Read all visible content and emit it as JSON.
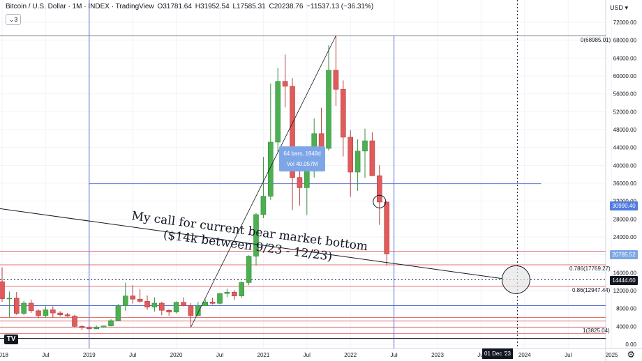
{
  "header": {
    "symbol": "Bitcoin / U.S. Dollar · 1M · INDEX · TradingView",
    "open": "O31781.64",
    "high": "H31952.54",
    "low": "L17585.31",
    "close": "C20238.76",
    "change": "−11537.13 (−36.31%)"
  },
  "indicator_count": "3",
  "currency": "USD",
  "tooltip": {
    "line1": "64 bars, 1948d",
    "line2": "Vol 40.057M"
  },
  "annotation": {
    "line1": "My call for current bear market bottom",
    "line2": "($14k between 9/23 - 12/23)"
  },
  "price_tags": {
    "t1": "30990.40",
    "t2": "20785.52",
    "t3": "14444.60"
  },
  "fib_labels": {
    "f0": "0(68985.01)",
    "f786": "0.786(17769.27)",
    "f86": "0.86(12947.44)",
    "f1": "1(3825.04)"
  },
  "crosshair_date": "01 Dec '23",
  "colors": {
    "up": "#4caf50",
    "down": "#e05c5c",
    "fib": "#e57373",
    "guide": "#5b6fd6",
    "accent_tag": "#4f7de0"
  },
  "chart_data": {
    "type": "candlestick",
    "title": "Bitcoin / U.S. Dollar · 1M · INDEX · TradingView",
    "interval": "1M",
    "ylim": [
      0,
      74000
    ],
    "y_ticks": [
      0,
      4000,
      8000,
      12000,
      16000,
      20000,
      24000,
      28000,
      32000,
      36000,
      40000,
      44000,
      48000,
      52000,
      56000,
      60000,
      64000,
      68000,
      72000
    ],
    "y_tick_labels": [
      "0.00",
      "4000.00",
      "8000.00",
      "12000.00",
      "16000.00",
      "20000.00",
      "24000.00",
      "28000.00",
      "32000.00",
      "36000.00",
      "40000.00",
      "44000.00",
      "48000.00",
      "52000.00",
      "56000.00",
      "60000.00",
      "64000.00",
      "68000.00",
      "72000.00"
    ],
    "x_ticks": [
      {
        "label": "2018",
        "i": 0
      },
      {
        "label": "Jul",
        "i": 6
      },
      {
        "label": "2019",
        "i": 12
      },
      {
        "label": "Jul",
        "i": 18
      },
      {
        "label": "2020",
        "i": 24
      },
      {
        "label": "Jul",
        "i": 30
      },
      {
        "label": "2021",
        "i": 36
      },
      {
        "label": "Jul",
        "i": 42
      },
      {
        "label": "2022",
        "i": 48
      },
      {
        "label": "Jul",
        "i": 54
      },
      {
        "label": "2023",
        "i": 60
      },
      {
        "label": "Jul",
        "i": 66
      },
      {
        "label": "2024",
        "i": 72
      },
      {
        "label": "Jul",
        "i": 78
      },
      {
        "label": "2025",
        "i": 84
      }
    ],
    "candles": [
      {
        "i": -1,
        "o": 10500,
        "h": 17000,
        "l": 9000,
        "c": 14000
      },
      {
        "i": 0,
        "o": 14000,
        "h": 17200,
        "l": 9500,
        "c": 10200
      },
      {
        "i": 1,
        "o": 10200,
        "h": 11800,
        "l": 6000,
        "c": 10300
      },
      {
        "i": 2,
        "o": 10300,
        "h": 11700,
        "l": 6600,
        "c": 6900
      },
      {
        "i": 3,
        "o": 6900,
        "h": 9700,
        "l": 6500,
        "c": 9200
      },
      {
        "i": 4,
        "o": 9200,
        "h": 10000,
        "l": 7000,
        "c": 7500
      },
      {
        "i": 5,
        "o": 7500,
        "h": 7800,
        "l": 5800,
        "c": 6400
      },
      {
        "i": 6,
        "o": 6400,
        "h": 8500,
        "l": 6000,
        "c": 7700
      },
      {
        "i": 7,
        "o": 7700,
        "h": 8500,
        "l": 5900,
        "c": 7000
      },
      {
        "i": 8,
        "o": 7000,
        "h": 7400,
        "l": 6200,
        "c": 6600
      },
      {
        "i": 9,
        "o": 6600,
        "h": 7000,
        "l": 6100,
        "c": 6300
      },
      {
        "i": 10,
        "o": 6300,
        "h": 6600,
        "l": 3800,
        "c": 4000
      },
      {
        "i": 11,
        "o": 4000,
        "h": 4300,
        "l": 3200,
        "c": 3700
      },
      {
        "i": 12,
        "o": 3700,
        "h": 4100,
        "l": 3400,
        "c": 3450
      },
      {
        "i": 13,
        "o": 3450,
        "h": 4200,
        "l": 3400,
        "c": 3850
      },
      {
        "i": 14,
        "o": 3850,
        "h": 4100,
        "l": 3700,
        "c": 4100
      },
      {
        "i": 15,
        "o": 4100,
        "h": 5600,
        "l": 4000,
        "c": 5300
      },
      {
        "i": 16,
        "o": 5300,
        "h": 9000,
        "l": 5200,
        "c": 8600
      },
      {
        "i": 17,
        "o": 8600,
        "h": 13800,
        "l": 7500,
        "c": 10800
      },
      {
        "i": 18,
        "o": 10800,
        "h": 13200,
        "l": 9100,
        "c": 10100
      },
      {
        "i": 19,
        "o": 10100,
        "h": 12300,
        "l": 9300,
        "c": 9600
      },
      {
        "i": 20,
        "o": 9600,
        "h": 10900,
        "l": 7700,
        "c": 8300
      },
      {
        "i": 21,
        "o": 8300,
        "h": 10500,
        "l": 7300,
        "c": 9200
      },
      {
        "i": 22,
        "o": 9200,
        "h": 9500,
        "l": 6500,
        "c": 7600
      },
      {
        "i": 23,
        "o": 7600,
        "h": 7800,
        "l": 6400,
        "c": 7200
      },
      {
        "i": 24,
        "o": 7200,
        "h": 9600,
        "l": 6900,
        "c": 9400
      },
      {
        "i": 25,
        "o": 9400,
        "h": 10500,
        "l": 8500,
        "c": 8600
      },
      {
        "i": 26,
        "o": 8600,
        "h": 9200,
        "l": 3800,
        "c": 6400
      },
      {
        "i": 27,
        "o": 6400,
        "h": 9500,
        "l": 6200,
        "c": 8600
      },
      {
        "i": 28,
        "o": 8600,
        "h": 10100,
        "l": 8600,
        "c": 9450
      },
      {
        "i": 29,
        "o": 9450,
        "h": 10400,
        "l": 8900,
        "c": 9150
      },
      {
        "i": 30,
        "o": 9150,
        "h": 11500,
        "l": 8900,
        "c": 11350
      },
      {
        "i": 31,
        "o": 11350,
        "h": 12400,
        "l": 10600,
        "c": 11650
      },
      {
        "i": 32,
        "o": 11650,
        "h": 12100,
        "l": 9900,
        "c": 10800
      },
      {
        "i": 33,
        "o": 10800,
        "h": 14100,
        "l": 10400,
        "c": 13800
      },
      {
        "i": 34,
        "o": 13800,
        "h": 19900,
        "l": 13200,
        "c": 19700
      },
      {
        "i": 35,
        "o": 19700,
        "h": 29300,
        "l": 17600,
        "c": 29000
      },
      {
        "i": 36,
        "o": 29000,
        "h": 41900,
        "l": 28200,
        "c": 33100
      },
      {
        "i": 37,
        "o": 33100,
        "h": 58300,
        "l": 32300,
        "c": 45200
      },
      {
        "i": 38,
        "o": 45200,
        "h": 61800,
        "l": 43000,
        "c": 58800
      },
      {
        "i": 39,
        "o": 58800,
        "h": 64800,
        "l": 53000,
        "c": 57700
      },
      {
        "i": 40,
        "o": 57700,
        "h": 59500,
        "l": 30000,
        "c": 37300
      },
      {
        "i": 41,
        "o": 37300,
        "h": 41300,
        "l": 31000,
        "c": 35000
      },
      {
        "i": 42,
        "o": 35000,
        "h": 42000,
        "l": 28900,
        "c": 41500
      },
      {
        "i": 43,
        "o": 41500,
        "h": 50500,
        "l": 37300,
        "c": 47100
      },
      {
        "i": 44,
        "o": 47100,
        "h": 52900,
        "l": 39600,
        "c": 43800
      },
      {
        "i": 45,
        "o": 43800,
        "h": 66900,
        "l": 43300,
        "c": 61300
      },
      {
        "i": 46,
        "o": 61300,
        "h": 69000,
        "l": 53300,
        "c": 57000
      },
      {
        "i": 47,
        "o": 57000,
        "h": 59000,
        "l": 42000,
        "c": 46300
      },
      {
        "i": 48,
        "o": 46300,
        "h": 47900,
        "l": 33000,
        "c": 38500
      },
      {
        "i": 49,
        "o": 38500,
        "h": 45800,
        "l": 34300,
        "c": 43200
      },
      {
        "i": 50,
        "o": 43200,
        "h": 48200,
        "l": 37200,
        "c": 45500
      },
      {
        "i": 51,
        "o": 45500,
        "h": 47400,
        "l": 37600,
        "c": 37700
      },
      {
        "i": 52,
        "o": 37700,
        "h": 40000,
        "l": 26700,
        "c": 31800
      },
      {
        "i": 53,
        "o": 31800,
        "h": 31950,
        "l": 17585,
        "c": 20239
      }
    ],
    "fib_levels": [
      {
        "ratio": "0",
        "price": 68985.01
      },
      {
        "ratio": "0.786",
        "price": 17769.27
      },
      {
        "ratio": "0.86",
        "price": 12947.44
      },
      {
        "ratio": "1",
        "price": 3825.04
      }
    ],
    "extra_red_levels": [
      20785.52,
      6000,
      5200,
      2400,
      1300
    ],
    "blue_horizontal": 35900,
    "dotted_price": 14444.6,
    "trendline": {
      "from": {
        "i": -1,
        "price": 30500
      },
      "to": {
        "i": 70,
        "price": 14700
      }
    },
    "parabolic_line": {
      "from": {
        "i": 26,
        "price": 3800
      },
      "to": {
        "i": 46,
        "price": 69000
      }
    },
    "target_circle": {
      "i": 71,
      "price": 14444.6
    },
    "crosshair_i": 71,
    "vertical_lines_i": [
      12,
      54
    ],
    "highlight_circle": {
      "i": 52,
      "price": 31900
    }
  }
}
